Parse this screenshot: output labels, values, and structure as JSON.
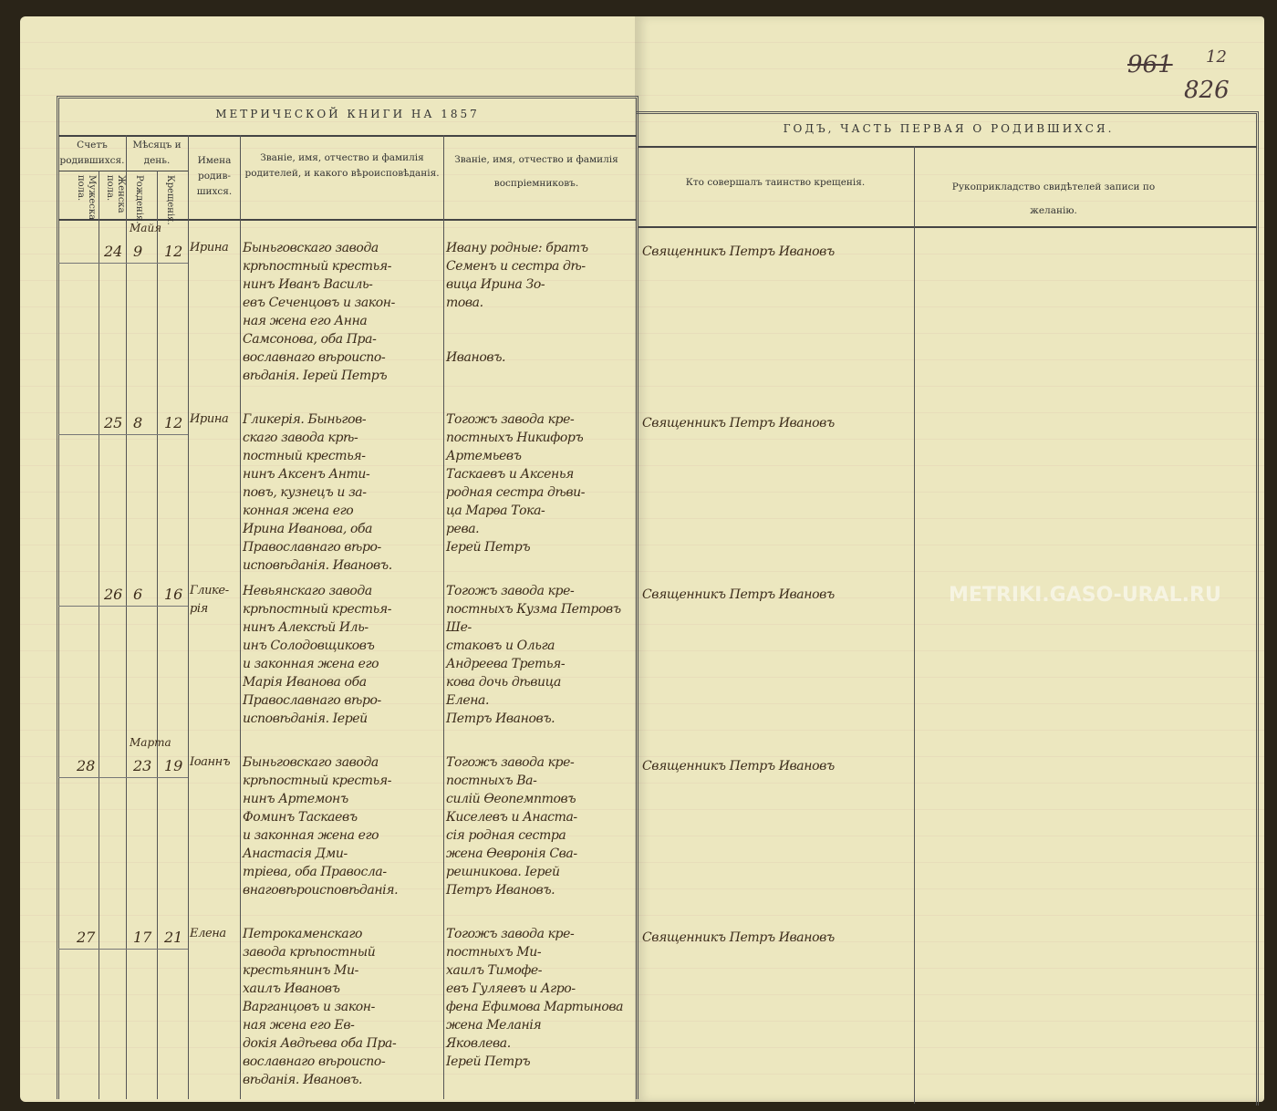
{
  "watermark": "METRIKI.GASO-URAL.RU",
  "folio": {
    "crossed": "961",
    "small": "12",
    "page": "826"
  },
  "left_title": "МЕТРИЧЕСКОЙ КНИГИ НА 1857",
  "right_title": "ГОДЪ, ЧАСТЬ ПЕРВАЯ О РОДИВШИХСЯ.",
  "headers": {
    "count": "Счетъ родившихся.",
    "male": "Мужеска пола.",
    "female": "Женска пола.",
    "month_day": "Мѣсяцъ и день.",
    "birth": "Рожденія.",
    "baptism": "Крещенія.",
    "names": "Имена родив-шихся.",
    "parents": "Званіе, имя, отчество и фамилія родителей, и какого вѣроисповѣданія.",
    "godparents": "Званіе, имя, отчество и фамилія воспріемниковъ.",
    "priest": "Кто совершалъ таинство крещенія.",
    "witnesses": "Рукоприкладство свидѣтелей записи по желанію."
  },
  "records": [
    {
      "month": "Майя",
      "male": "",
      "female": "24",
      "birth": "9",
      "baptism": "12",
      "name": "Ирина",
      "parents": "Быньговскаго завода\nкрѣпостный крестья-\nнинъ Иванъ Василь-\nевъ Сеченцовъ и закон-\nная жена его Анна\nСамсонова, оба Пра-\nвославнаго вѣроиспо-\nвѣданія. Іерей Петръ",
      "godparents": "Ивану родные: братъ\nСеменъ и сестра дѣ-\nвица Ирина Зо-\nтова.\n\n\nИвановъ.",
      "priest": "Священникъ Петръ Ивановъ"
    },
    {
      "month": "",
      "male": "",
      "female": "25",
      "birth": "8",
      "baptism": "12",
      "name": "Ирина",
      "parents": "Гликерія. Быньгов-\nскаго завода крѣ-\nпостный крестья-\nнинъ Аксенъ Анти-\nповъ, кузнецъ и за-\nконная жена его\nИрина Иванова, оба\nПравославнаго вѣро-\nисповѣданія. Ивановъ.",
      "godparents": "Тогожъ завода кре-\nпостныхъ Никифоръ Артемьевъ\nТаскаевъ и Аксенья\nродная сестра дѣви-\nца Марѳа Тока-\nрева.\nІерей Петръ",
      "priest": "Священникъ Петръ Ивановъ"
    },
    {
      "month": "",
      "male": "",
      "female": "26",
      "birth": "6",
      "baptism": "16",
      "name": "Глике-\nрія",
      "parents": "Невьянскаго завода\nкрѣпостный крестья-\nнинъ Алексѣй Иль-\nинъ Солодовщиковъ\nи законная жена его\nМарія Иванова оба\nПравославнаго вѣро-\nисповѣданія. Іерей",
      "godparents": "Тогожъ завода кре-\nпостныхъ Кузма Петровъ Ше-\nстаковъ и Ольга\nАндреева Третья-\nкова дочь дѣвица\nЕлена.\nПетръ Ивановъ.",
      "priest": "Священникъ Петръ Ивановъ"
    },
    {
      "month": "Марта",
      "male": "28",
      "female": "",
      "birth": "23",
      "baptism": "19",
      "name": "Іоаннъ",
      "parents": "Быньговскаго завода\nкрѣпостный крестья-\nнинъ Артемонъ\nФоминъ Таскаевъ\nи законная жена его\nАнастасія Дми-\nтріева, оба Правосла-\nвнаговѣроисповѣданія.",
      "godparents": "Тогожъ завода кре-\nпостныхъ Ва-\nсилій Ѳеопемптовъ\nКиселевъ и Анаста-\nсія родная сестра\nжена Ѳевронія Сва-\nрешникова. Іерей\nПетръ Ивановъ.",
      "priest": "Священникъ Петръ Ивановъ"
    },
    {
      "month": "",
      "male": "27",
      "female": "",
      "birth": "17",
      "baptism": "21",
      "name": "Елена",
      "parents": "Петрокаменскаго\nзавода крѣпостный\nкрестьянинъ Ми-\nхаилъ Ивановъ\nВарганцовъ и закон-\nная жена его Ев-\nдокія Авдѣева оба Пра-\nвославнаго вѣроиспо-\nвѣданія. Ивановъ.",
      "godparents": "Тогожъ завода кре-\nпостныхъ Ми-\nхаилъ Тимофе-\nевъ Гуляевъ и Агро-\nфена Ефимова Мартынова\nжена Меланія\nЯковлева.\nІерей Петръ",
      "priest": "Священникъ Петръ Ивановъ"
    }
  ]
}
